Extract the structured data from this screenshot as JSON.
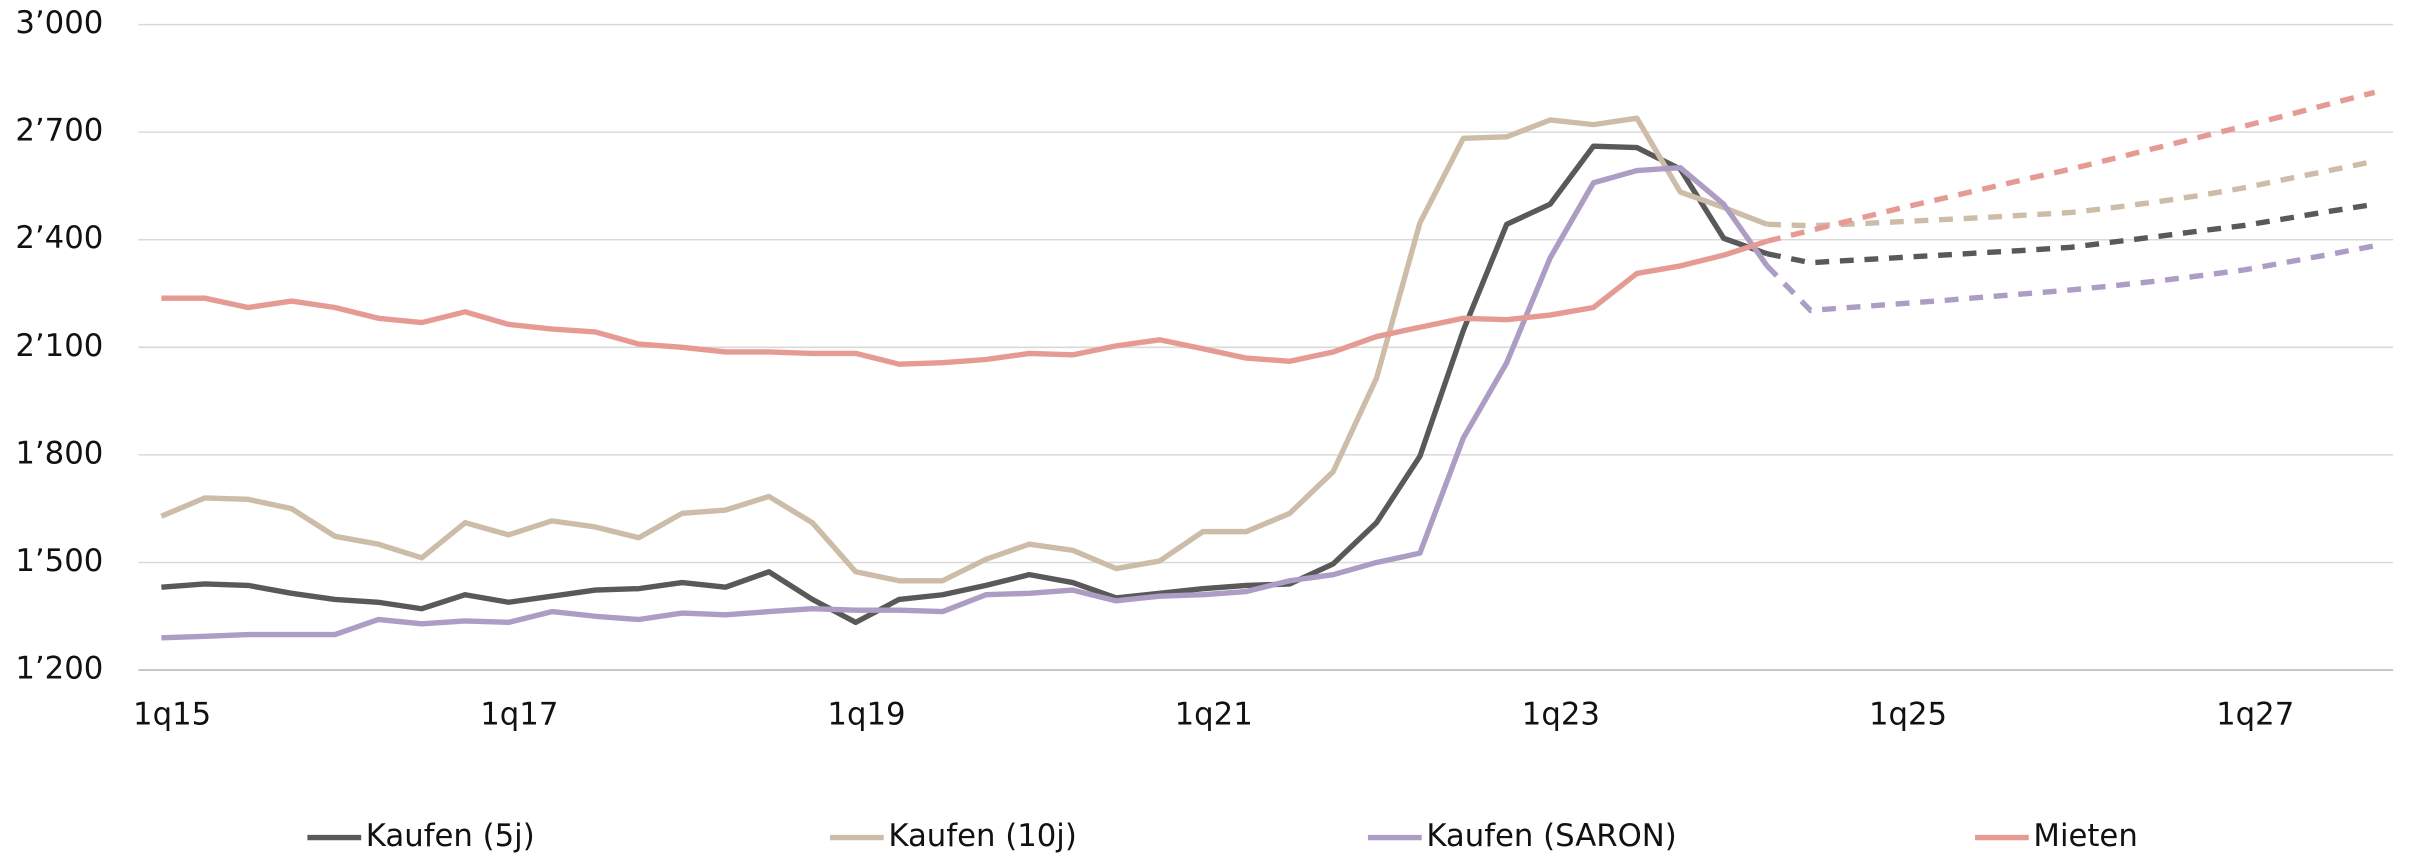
{
  "chart_data": {
    "type": "line",
    "categories": [
      "1q15",
      null,
      null,
      null,
      null,
      null,
      null,
      null,
      "1q17",
      null,
      null,
      null,
      null,
      null,
      null,
      null,
      "1q19",
      null,
      null,
      null,
      null,
      null,
      null,
      null,
      "1q21",
      null,
      null,
      null,
      null,
      null,
      null,
      null,
      "1q23",
      null,
      null,
      null,
      null,
      null,
      null,
      null,
      "1q25",
      null,
      null,
      null,
      null,
      null,
      null,
      null,
      "1q27",
      null,
      null,
      null
    ],
    "ylim": [
      1200,
      3000
    ],
    "yticks": [
      {
        "value": 1200,
        "label": "1’200"
      },
      {
        "value": 1500,
        "label": "1’500"
      },
      {
        "value": 1800,
        "label": "1’800"
      },
      {
        "value": 2100,
        "label": "2’100"
      },
      {
        "value": 2400,
        "label": "2’400"
      },
      {
        "value": 2700,
        "label": "2’700"
      },
      {
        "value": 3000,
        "label": "3’000"
      }
    ],
    "grid": true,
    "legend": "bottom",
    "series": [
      {
        "name": "Kaufen (5j)",
        "color": "#595959",
        "values": [
          1431,
          1440,
          1436,
          1414,
          1397,
          1389,
          1371,
          1410,
          1389,
          1406,
          1423,
          1427,
          1444,
          1431,
          1474,
          1397,
          1333,
          1397,
          1410,
          1436,
          1466,
          1444,
          1401,
          1414,
          1427,
          1436,
          1440,
          1496,
          1611,
          1796,
          2147,
          2443,
          2499,
          2661,
          2657,
          2597,
          2404,
          2361,
          null,
          null,
          null,
          null,
          null,
          null,
          null,
          null,
          null,
          null,
          null,
          null,
          null,
          null
        ],
        "forecast": [
          null,
          null,
          null,
          null,
          null,
          null,
          null,
          null,
          null,
          null,
          null,
          null,
          null,
          null,
          null,
          null,
          null,
          null,
          null,
          null,
          null,
          null,
          null,
          null,
          null,
          null,
          null,
          null,
          null,
          null,
          null,
          null,
          null,
          null,
          null,
          null,
          null,
          2361,
          2336,
          2343,
          2350,
          2357,
          2364,
          2371,
          2379,
          2394,
          2409,
          2425,
          2440,
          2460,
          2480,
          2499
        ]
      },
      {
        "name": "Kaufen (10j)",
        "color": "#cdbca8",
        "values": [
          1629,
          1680,
          1676,
          1650,
          1573,
          1551,
          1513,
          1611,
          1577,
          1616,
          1599,
          1569,
          1637,
          1646,
          1684,
          1611,
          1474,
          1449,
          1449,
          1509,
          1551,
          1534,
          1483,
          1504,
          1586,
          1586,
          1637,
          1753,
          2014,
          2447,
          2683,
          2687,
          2734,
          2721,
          2739,
          2533,
          2490,
          2443,
          null,
          null,
          null,
          null,
          null,
          null,
          null,
          null,
          null,
          null,
          null,
          null,
          null,
          null
        ],
        "forecast": [
          null,
          null,
          null,
          null,
          null,
          null,
          null,
          null,
          null,
          null,
          null,
          null,
          null,
          null,
          null,
          null,
          null,
          null,
          null,
          null,
          null,
          null,
          null,
          null,
          null,
          null,
          null,
          null,
          null,
          null,
          null,
          null,
          null,
          null,
          null,
          null,
          null,
          2443,
          2439,
          2444,
          2450,
          2456,
          2462,
          2469,
          2476,
          2490,
          2506,
          2524,
          2545,
          2570,
          2594,
          2619
        ]
      },
      {
        "name": "Kaufen (SARON)",
        "color": "#ad9cc4",
        "values": [
          1290,
          1294,
          1299,
          1299,
          1299,
          1341,
          1329,
          1337,
          1333,
          1363,
          1350,
          1341,
          1359,
          1354,
          1363,
          1371,
          1367,
          1367,
          1363,
          1410,
          1414,
          1423,
          1393,
          1406,
          1410,
          1419,
          1449,
          1466,
          1500,
          1526,
          1847,
          2057,
          2349,
          2559,
          2593,
          2601,
          2499,
          2327,
          null,
          null,
          null,
          null,
          null,
          null,
          null,
          null,
          null,
          null,
          null,
          null,
          null,
          null
        ],
        "forecast": [
          null,
          null,
          null,
          null,
          null,
          null,
          null,
          null,
          null,
          null,
          null,
          null,
          null,
          null,
          null,
          null,
          null,
          null,
          null,
          null,
          null,
          null,
          null,
          null,
          null,
          null,
          null,
          null,
          null,
          null,
          null,
          null,
          null,
          null,
          null,
          null,
          null,
          2327,
          2203,
          2212,
          2221,
          2230,
          2240,
          2250,
          2260,
          2272,
          2285,
          2300,
          2316,
          2338,
          2360,
          2383
        ]
      },
      {
        "name": "Mieten",
        "color": "#e69a94",
        "values": [
          2237,
          2237,
          2211,
          2229,
          2211,
          2181,
          2169,
          2199,
          2164,
          2151,
          2143,
          2109,
          2100,
          2087,
          2087,
          2083,
          2083,
          2053,
          2057,
          2066,
          2083,
          2079,
          2104,
          2121,
          2096,
          2070,
          2061,
          2087,
          2130,
          2156,
          2181,
          2177,
          2190,
          2211,
          2306,
          2327,
          2357,
          2396,
          null,
          null,
          null,
          null,
          null,
          null,
          null,
          null,
          null,
          null,
          null,
          null,
          null,
          null
        ],
        "forecast": [
          null,
          null,
          null,
          null,
          null,
          null,
          null,
          null,
          null,
          null,
          null,
          null,
          null,
          null,
          null,
          null,
          null,
          null,
          null,
          null,
          null,
          null,
          null,
          null,
          null,
          null,
          null,
          null,
          null,
          null,
          null,
          null,
          null,
          null,
          null,
          null,
          null,
          2396,
          2426,
          2456,
          2486,
          2514,
          2542,
          2570,
          2597,
          2627,
          2657,
          2687,
          2717,
          2748,
          2780,
          2811
        ]
      }
    ]
  }
}
